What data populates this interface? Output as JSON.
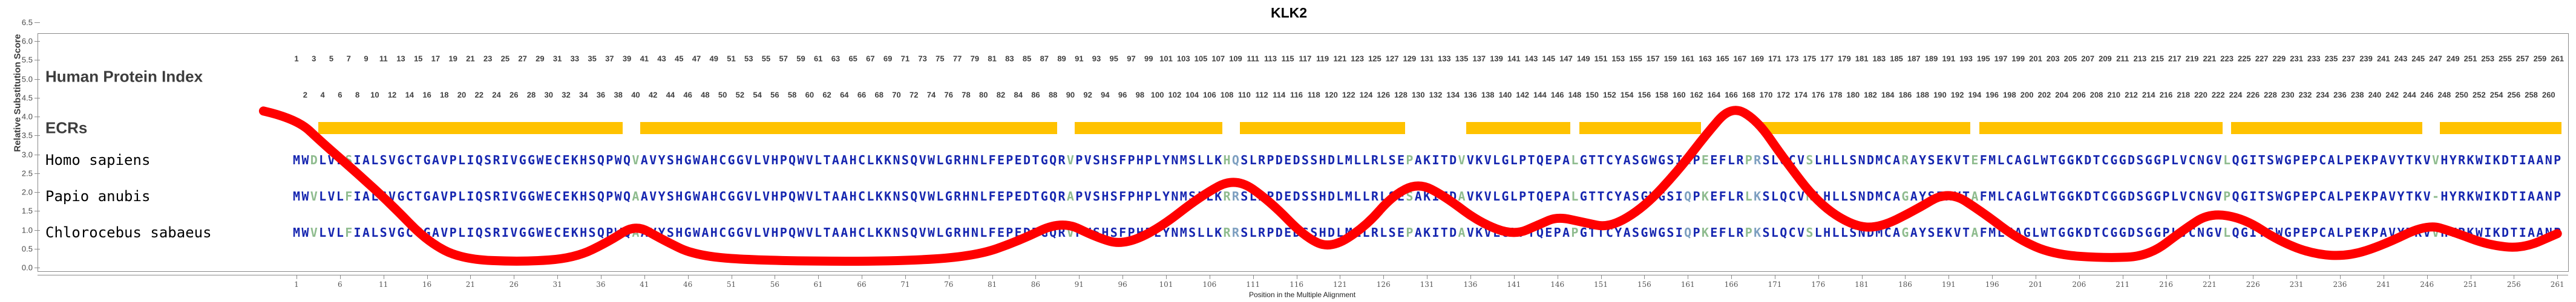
{
  "title": "KLK2",
  "colors": {
    "residue_default": "#1626b0",
    "residue_substitution_green": "#8fbc8f",
    "residue_substitution_teal": "#7d9fc0",
    "ecr_bar": "#ffc200",
    "score_curve": "#ff0000",
    "axis": "#8a8a8a",
    "row_label": "#3d3d3d"
  },
  "y_axis": {
    "label": "Relative Substitution Score",
    "min": 0.0,
    "max": 6.5,
    "step": 0.5
  },
  "x_axis": {
    "label": "Position in the Multiple Alignment",
    "tick_start": 1,
    "tick_step": 5,
    "tick_end": 261
  },
  "alignment_length": 261,
  "rows": {
    "human_protein_index": {
      "label": "Human Protein Index",
      "odd_row_start": 1,
      "even_row_start": 2,
      "end": 261
    },
    "ecrs": {
      "label": "ECRs",
      "segments": [
        [
          4,
          38
        ],
        [
          41,
          88
        ],
        [
          91,
          107
        ],
        [
          110,
          128
        ],
        [
          136,
          147
        ],
        [
          149,
          162
        ],
        [
          170,
          193
        ],
        [
          195,
          222
        ],
        [
          224,
          245
        ],
        [
          248,
          261
        ]
      ]
    },
    "species": [
      {
        "label": "Homo sapiens",
        "substitutions": []
      },
      {
        "label": "Papio anubis",
        "substitutions": [
          [
            3,
            "V"
          ],
          [
            7,
            "F"
          ],
          [
            40,
            "A"
          ],
          [
            90,
            "A"
          ],
          [
            108,
            "R"
          ],
          [
            109,
            "R"
          ],
          [
            129,
            "S"
          ],
          [
            135,
            "A"
          ],
          [
            161,
            "Q"
          ],
          [
            163,
            "K"
          ],
          [
            168,
            "L"
          ],
          [
            169,
            "K"
          ],
          [
            175,
            "N"
          ],
          [
            186,
            "G"
          ],
          [
            194,
            "A"
          ],
          [
            223,
            "P"
          ],
          [
            247,
            "-"
          ]
        ]
      },
      {
        "label": "Chlorocebus sabaeus",
        "substitutions": [
          [
            3,
            "V"
          ],
          [
            7,
            "F"
          ],
          [
            40,
            "A"
          ],
          [
            108,
            "R"
          ],
          [
            109,
            "R"
          ],
          [
            135,
            "A"
          ],
          [
            148,
            "P"
          ],
          [
            161,
            "Q"
          ],
          [
            163,
            "K"
          ],
          [
            169,
            "K"
          ],
          [
            186,
            "G"
          ],
          [
            194,
            "A"
          ]
        ]
      }
    ]
  },
  "human_sequence": "MWDLVLSIALSVGCTGAVPLIQSRIVGGWECEKHSQPWQVAVYSHGWAHCGGVLVHPQWVLTAAHCLKKNSQVWLGRHNLFEPEDTGQRVPVSHSFPHPLYNMSLLKHQSLRPDEDSSHDLMLLRLSEPAKITDVVKVLGLPTQEPALGTTCYASGWGSIEPEEFLRPRSLQCVSLHLLSNDMCARAYSEKVTEFMLCAGLWTGGKDTCGGDSGGPLVCNGVLQGITSWGPEPCALPEKPAVYTKVVHYRKWIKDTIAANP",
  "colored_columns": {
    "3": "g",
    "7": "g",
    "40": "g",
    "90": "g",
    "108": "g",
    "109": "t",
    "129": "g",
    "135": "g",
    "148": "g",
    "161": "t",
    "163": "g",
    "168": "g",
    "169": "t",
    "175": "g",
    "186": "g",
    "194": "g",
    "223": "g",
    "247": "g"
  },
  "chart_data": {
    "type": "line",
    "title": "KLK2",
    "xlabel": "Position in the Multiple Alignment",
    "ylabel": "Relative Substitution Score",
    "xlim": [
      1,
      261
    ],
    "ylim": [
      0,
      6.5
    ],
    "grid": false,
    "legend_position": "none",
    "series": [
      {
        "name": "relative substitution score",
        "points": [
          [
            -2.8,
            4.15
          ],
          [
            1,
            3.95
          ],
          [
            4,
            3.3
          ],
          [
            8,
            2.5
          ],
          [
            12,
            1.65
          ],
          [
            16,
            0.7
          ],
          [
            20,
            0.22
          ],
          [
            27,
            0.15
          ],
          [
            33,
            0.25
          ],
          [
            37,
            0.7
          ],
          [
            40,
            1.15
          ],
          [
            43,
            0.75
          ],
          [
            47,
            0.3
          ],
          [
            55,
            0.18
          ],
          [
            70,
            0.16
          ],
          [
            79,
            0.3
          ],
          [
            84,
            0.7
          ],
          [
            89,
            1.25
          ],
          [
            93,
            0.8
          ],
          [
            96,
            0.6
          ],
          [
            100,
            1.0
          ],
          [
            105,
            1.9
          ],
          [
            109,
            2.4
          ],
          [
            113,
            1.75
          ],
          [
            117,
            0.8
          ],
          [
            120,
            0.5
          ],
          [
            124,
            1.1
          ],
          [
            127,
            1.9
          ],
          [
            130,
            2.25
          ],
          [
            133,
            1.9
          ],
          [
            137,
            1.2
          ],
          [
            141,
            0.85
          ],
          [
            144,
            1.15
          ],
          [
            146,
            1.35
          ],
          [
            149,
            1.2
          ],
          [
            152,
            1.05
          ],
          [
            156,
            1.6
          ],
          [
            160,
            2.6
          ],
          [
            163,
            3.5
          ],
          [
            166,
            4.3
          ],
          [
            169,
            3.9
          ],
          [
            172,
            2.9
          ],
          [
            176,
            1.7
          ],
          [
            180,
            1.1
          ],
          [
            183,
            1.05
          ],
          [
            187,
            1.5
          ],
          [
            191,
            2.05
          ],
          [
            195,
            1.45
          ],
          [
            199,
            0.75
          ],
          [
            203,
            0.35
          ],
          [
            209,
            0.25
          ],
          [
            214,
            0.3
          ],
          [
            218,
            1.0
          ],
          [
            221,
            1.45
          ],
          [
            225,
            1.3
          ],
          [
            229,
            0.7
          ],
          [
            233,
            0.35
          ],
          [
            237,
            0.3
          ],
          [
            241,
            0.6
          ],
          [
            246,
            1.15
          ],
          [
            249,
            0.95
          ],
          [
            253,
            0.6
          ],
          [
            257,
            0.5
          ],
          [
            261,
            0.9
          ]
        ]
      }
    ],
    "ecr_segments_columns": [
      [
        4,
        38
      ],
      [
        41,
        88
      ],
      [
        91,
        107
      ],
      [
        110,
        128
      ],
      [
        136,
        147
      ],
      [
        149,
        162
      ],
      [
        170,
        193
      ],
      [
        195,
        222
      ],
      [
        224,
        245
      ],
      [
        248,
        261
      ]
    ]
  }
}
